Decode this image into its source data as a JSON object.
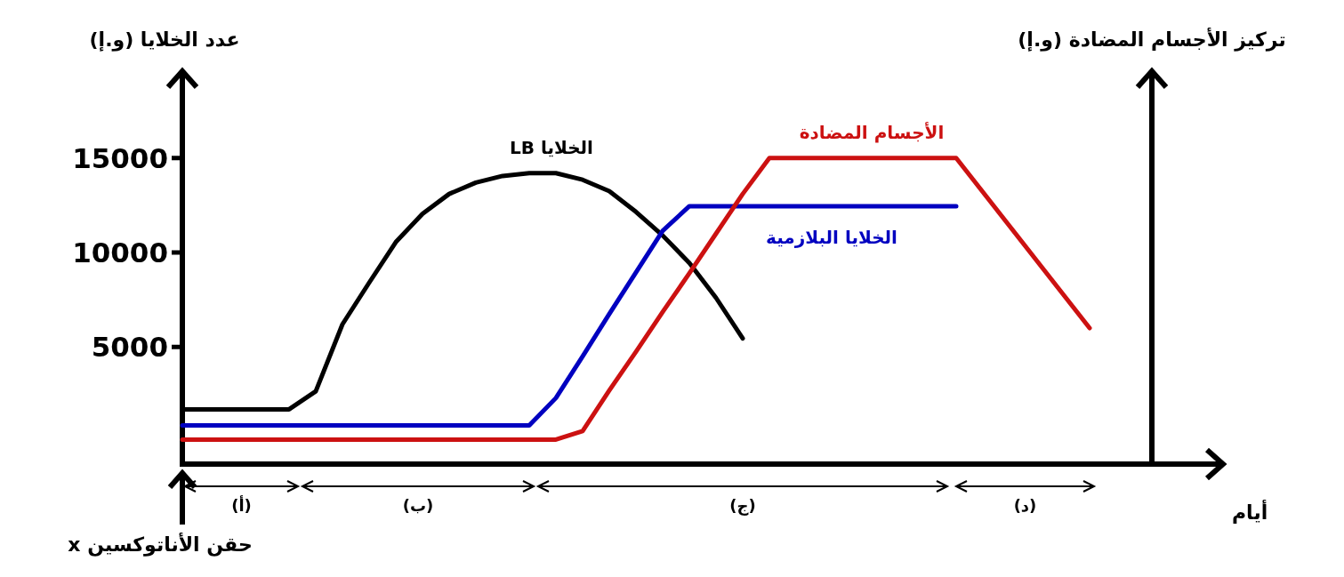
{
  "chart_data": {
    "type": "line",
    "ylabel": "عدد الخلايا (و.إ)",
    "y2label": "تركيز الأجسام المضادة (و.إ)",
    "xlabel": "أيام",
    "categories": [
      null,
      null,
      null,
      null,
      null,
      null,
      null,
      null,
      null,
      null,
      null,
      null,
      null,
      null,
      null,
      null,
      null,
      null,
      null,
      null,
      null,
      null,
      null,
      null,
      null,
      null,
      null,
      null,
      null,
      null,
      null,
      null,
      null,
      null,
      null,
      null,
      null,
      null,
      null,
      null
    ],
    "ylim": [
      -1200,
      19600
    ],
    "yticks": [
      5000,
      10000,
      15000
    ],
    "marker": "none",
    "line_style": "solid",
    "series": [
      {
        "name": "الخلايا LB",
        "color": "#000000",
        "values": [
          1700,
          1700,
          1700,
          1700,
          1700,
          2650,
          6200,
          8400,
          10550,
          12050,
          13100,
          13700,
          14050,
          14200,
          14200,
          13850,
          13250,
          12150,
          10900,
          9450,
          7600,
          5450,
          null,
          null,
          null,
          null,
          null,
          null,
          null,
          null,
          null,
          null,
          null,
          null,
          null,
          null,
          null,
          null,
          null,
          null
        ]
      },
      {
        "name": "الخلايا البلازمية",
        "color": "#0000c0",
        "values": [
          850,
          850,
          850,
          850,
          850,
          850,
          850,
          850,
          850,
          850,
          850,
          850,
          850,
          850,
          2300,
          4500,
          6750,
          8950,
          11150,
          12450,
          12450,
          12450,
          12450,
          12450,
          12450,
          12450,
          12450,
          12450,
          12450,
          12450,
          null,
          null,
          null,
          null,
          null,
          null,
          null,
          null,
          null,
          null
        ]
      },
      {
        "name": "الأجسام المضادة",
        "color": "#cc1111",
        "values": [
          100,
          100,
          100,
          100,
          100,
          100,
          100,
          100,
          100,
          100,
          100,
          100,
          100,
          100,
          100,
          550,
          2700,
          4750,
          6850,
          8900,
          11000,
          13100,
          15000,
          15000,
          15000,
          15000,
          15000,
          15000,
          15000,
          15000,
          13200,
          11400,
          9600,
          7800,
          6000,
          null,
          null,
          null,
          null,
          null
        ]
      }
    ],
    "annotations": [
      "(أ)",
      "(ب)",
      "(ج)",
      "(د)",
      "حقن الأناتوكسين x"
    ]
  }
}
